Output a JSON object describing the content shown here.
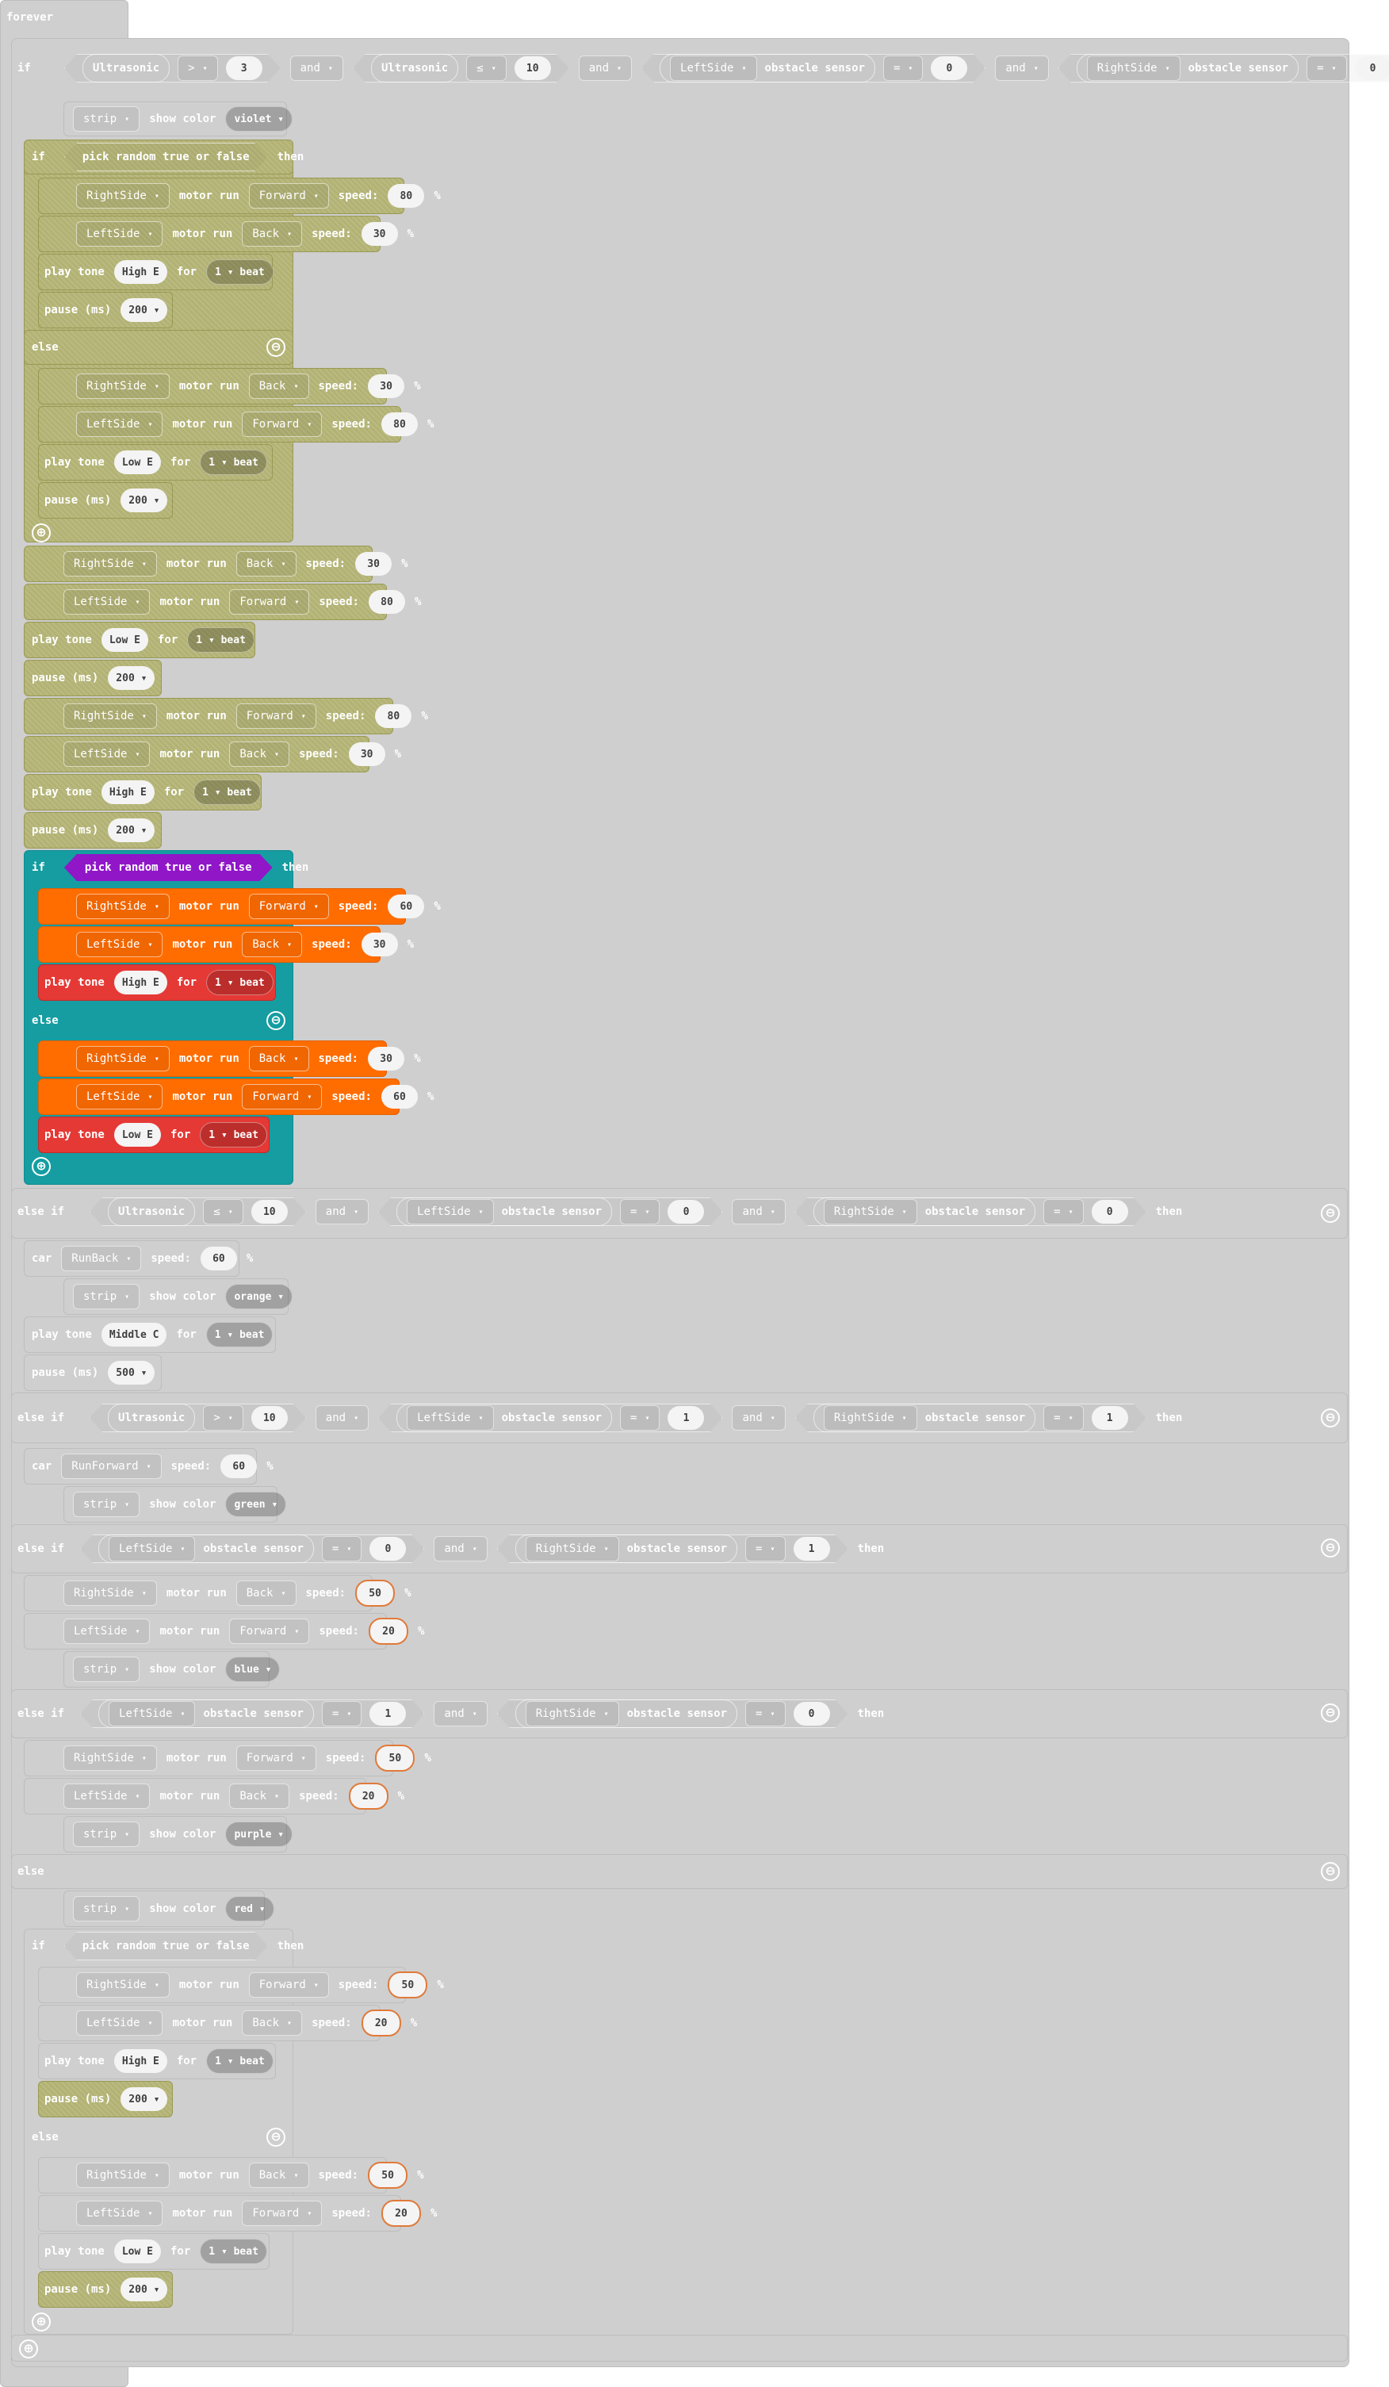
{
  "forever": "forever",
  "kw": {
    "if": "if",
    "then": "then",
    "else": "else",
    "else_if": "else if",
    "and": "and",
    "play_tone": "play tone",
    "for": "for",
    "pause": "pause (ms)",
    "show_color": "show color",
    "motor_run": "motor run",
    "speed": "speed:",
    "percent": "%",
    "obstacle_sensor": "obstacle sensor",
    "pick_random": "pick random true or false",
    "car": "car"
  },
  "sensors": {
    "ultrasonic": "Ultrasonic",
    "left": "LeftSide",
    "right": "RightSide",
    "strip": "strip"
  },
  "dirs": {
    "forward": "Forward",
    "back": "Back",
    "run_back": "RunBack",
    "run_forward": "RunForward"
  },
  "ops": {
    "gt": ">",
    "le": "≤",
    "eq": "="
  },
  "tones": {
    "high_e": "High E",
    "low_e": "Low E",
    "middle_c": "Middle C",
    "beat": "1 ▾ beat"
  },
  "colors": {
    "violet": "violet",
    "orange": "orange",
    "green": "green",
    "blue": "blue",
    "purple": "purple",
    "red": "red"
  },
  "nums": {
    "n0": "0",
    "n1": "1",
    "n3": "3",
    "n10": "10",
    "n20": "20",
    "n30": "30",
    "n50": "50",
    "n60": "60",
    "n80": "80",
    "n200": "200",
    "n500": "500"
  },
  "icons": {
    "minus": "⊖",
    "plus": "⊕",
    "caret": "▾"
  },
  "palette": {
    "grey": "#cfcfcf",
    "olive": "#b2b274",
    "teal": "#159da1",
    "orange": "#ff6d00",
    "red": "#e53935",
    "purple": "#9016c8"
  }
}
